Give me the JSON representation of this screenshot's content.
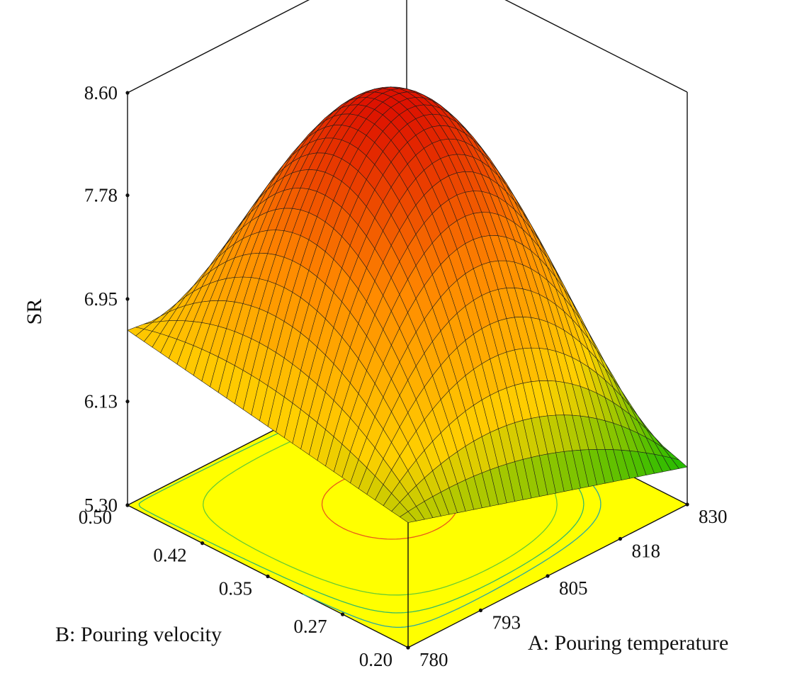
{
  "chart_data": {
    "type": "surface3d",
    "zlabel": "SR",
    "xlabel": "A: Pouring temperature",
    "ylabel": "B: Pouring velocity",
    "x_ticks": [
      "780",
      "793",
      "805",
      "818",
      "830"
    ],
    "y_ticks": [
      "0.20",
      "0.27",
      "0.35",
      "0.42",
      "0.50"
    ],
    "z_ticks": [
      "5.30",
      "6.13",
      "6.95",
      "7.78",
      "8.60"
    ],
    "xlim": [
      780,
      830
    ],
    "ylim": [
      0.2,
      0.5
    ],
    "zlim": [
      5.3,
      8.6
    ],
    "surface": {
      "peak": 8.55,
      "corners": [
        {
          "x": 780,
          "y": 0.2,
          "z": 6.3
        },
        {
          "x": 830,
          "y": 0.2,
          "z": 5.6
        },
        {
          "x": 780,
          "y": 0.5,
          "z": 6.7
        },
        {
          "x": 830,
          "y": 0.5,
          "z": 6.4
        }
      ]
    },
    "colormap": [
      "#22bb00",
      "#ffd000",
      "#ff8800",
      "#dd1100"
    ],
    "floor_color": "#ffff00"
  }
}
